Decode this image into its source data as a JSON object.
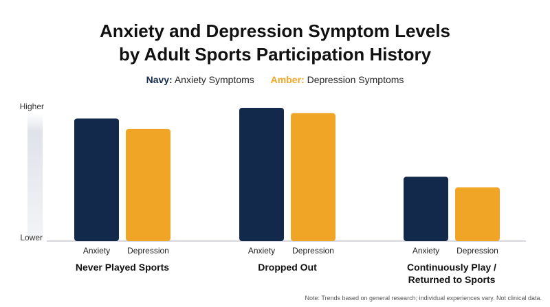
{
  "title_line1": "Anxiety and Depression Symptom Levels",
  "title_line2": "by Adult Sports Participation History",
  "legend": [
    {
      "key": "Navy:",
      "label": "Anxiety Symptoms",
      "color": "#13294b"
    },
    {
      "key": "Amber:",
      "label": "Depression Symptoms",
      "color": "#f0a526"
    }
  ],
  "note": "Note: Trends based on general research; individual experiences vary. Not clinical data.",
  "chart_data": {
    "type": "bar",
    "y_axis_labels": {
      "top": "Higher",
      "bottom": "Lower"
    },
    "ylim": [
      0,
      100
    ],
    "categories": [
      "Never Played Sports",
      "Dropped Out",
      "Continuously Play / Returned to Sports"
    ],
    "category_lines": [
      [
        "Never Played Sports"
      ],
      [
        "Dropped Out"
      ],
      [
        "Continuously Play /",
        "Returned to Sports"
      ]
    ],
    "series": [
      {
        "name": "Anxiety",
        "color": "#13294b",
        "values": [
          92,
          100,
          48
        ]
      },
      {
        "name": "Depression",
        "color": "#f0a526",
        "values": [
          84,
          96,
          40
        ]
      }
    ],
    "grid": false
  }
}
